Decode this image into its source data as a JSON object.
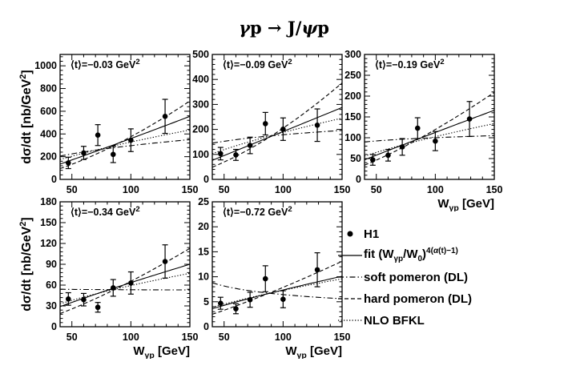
{
  "figure": {
    "title_html": "<i>γ</i>p → J/<i>ψ</i>p"
  },
  "chart_data": {
    "type": "scatter",
    "title": "γp → J/ψp",
    "xlabel": "Wγp [GeV]",
    "ylabel": "dσ/dt [nb/GeV²]",
    "x_range": [
      40,
      150
    ],
    "x_major_ticks": [
      50,
      100,
      150
    ],
    "x_minor_step": 10,
    "xlabel_parts": [
      "W",
      "γp",
      " [GeV]"
    ],
    "ylabel_parts": [
      "dσ/dt [nb/GeV",
      "2",
      "]"
    ],
    "colors": {
      "foreground": "#000000",
      "background": "#ffffff"
    },
    "curve_styles": {
      "fit": "solid",
      "soft_pomeron": "dashdot",
      "hard_pomeron": "dashed",
      "nlo_bfkl": "dotted"
    },
    "panels": [
      {
        "t_label": "⟨t⟩=−0.03 GeV^2",
        "ylim": [
          0,
          1100
        ],
        "y_major_ticks": [
          0,
          200,
          400,
          600,
          800,
          1000
        ],
        "points": {
          "x": [
            47,
            60,
            72,
            85,
            100,
            129
          ],
          "y": [
            145,
            233,
            390,
            220,
            345,
            555
          ],
          "yerr": [
            50,
            58,
            92,
            72,
            100,
            150
          ]
        },
        "curves": {
          "fit": [
            135,
            555
          ],
          "soft_pomeron": [
            205,
            350
          ],
          "hard_pomeron": [
            95,
            690
          ],
          "nlo_bfkl": [
            175,
            435
          ]
        },
        "show_ylabel": true,
        "show_xlabel": false
      },
      {
        "t_label": "⟨t⟩=−0.09 GeV^2",
        "ylim": [
          0,
          500
        ],
        "y_major_ticks": [
          0,
          100,
          200,
          300,
          400,
          500
        ],
        "points": {
          "x": [
            47,
            60,
            72,
            85,
            100,
            129
          ],
          "y": [
            103,
            98,
            136,
            223,
            201,
            217
          ],
          "yerr": [
            25,
            22,
            33,
            45,
            45,
            65
          ]
        },
        "curves": {
          "fit": [
            76,
            288
          ],
          "soft_pomeron": [
            145,
            196
          ],
          "hard_pomeron": [
            49,
            386
          ],
          "nlo_bfkl": [
            103,
            245
          ]
        },
        "show_ylabel": false,
        "show_xlabel": false
      },
      {
        "t_label": "⟨t⟩=−0.19 GeV^2",
        "ylim": [
          0,
          300
        ],
        "y_major_ticks": [
          0,
          50,
          100,
          150,
          200,
          250,
          300
        ],
        "points": {
          "x": [
            47,
            60,
            72,
            85,
            100,
            129
          ],
          "y": [
            47,
            58,
            78,
            123,
            92,
            145
          ],
          "yerr": [
            13,
            14,
            20,
            25,
            23,
            42
          ]
        },
        "curves": {
          "fit": [
            47,
            166
          ],
          "soft_pomeron": [
            90,
            105
          ],
          "hard_pomeron": [
            34,
            209
          ],
          "nlo_bfkl": [
            56,
            134
          ]
        },
        "show_ylabel": false,
        "show_xlabel": true
      },
      {
        "t_label": "⟨t⟩=−0.34 GeV^2",
        "ylim": [
          0,
          180
        ],
        "y_major_ticks": [
          0,
          30,
          60,
          90,
          120,
          150,
          180
        ],
        "points": {
          "x": [
            47,
            60,
            72,
            85,
            100,
            129
          ],
          "y": [
            40,
            39,
            28,
            56,
            63,
            94
          ],
          "yerr": [
            9,
            9,
            7,
            12,
            16,
            24
          ]
        },
        "curves": {
          "fit": [
            29,
            90
          ],
          "soft_pomeron": [
            54,
            53
          ],
          "hard_pomeron": [
            19,
            113
          ],
          "nlo_bfkl": [
            33,
            77
          ]
        },
        "show_ylabel": true,
        "show_xlabel": true
      },
      {
        "t_label": "⟨t⟩=−0.72 GeV^2",
        "ylim": [
          0,
          25
        ],
        "y_major_ticks": [
          0,
          5,
          10,
          15,
          20,
          25
        ],
        "points": {
          "x": [
            47,
            60,
            72,
            85,
            100,
            129
          ],
          "y": [
            4.7,
            3.6,
            5.4,
            9.6,
            5.5,
            11.4
          ],
          "yerr": [
            1.2,
            1.0,
            1.5,
            2.6,
            1.7,
            3.4
          ]
        },
        "curves": {
          "fit": [
            3.6,
            10.1
          ],
          "soft_pomeron": [
            8.8,
            5.6
          ],
          "hard_pomeron": [
            2.5,
            13.1
          ],
          "nlo_bfkl": [
            3.9,
            9.6
          ]
        },
        "show_ylabel": false,
        "show_xlabel": true
      }
    ],
    "legend": [
      {
        "marker": "point",
        "label_html": "H1"
      },
      {
        "marker": "solid",
        "label_html": "fit (W<sub>γp</sub>/W<sub>0</sub>)<sup>4(<i>α</i>(t)−1)</sup>"
      },
      {
        "marker": "dashdot",
        "label_html": "soft pomeron (DL)"
      },
      {
        "marker": "dashed",
        "label_html": "hard pomeron (DL)"
      },
      {
        "marker": "dotted",
        "label_html": "NLO BFKL"
      }
    ]
  }
}
